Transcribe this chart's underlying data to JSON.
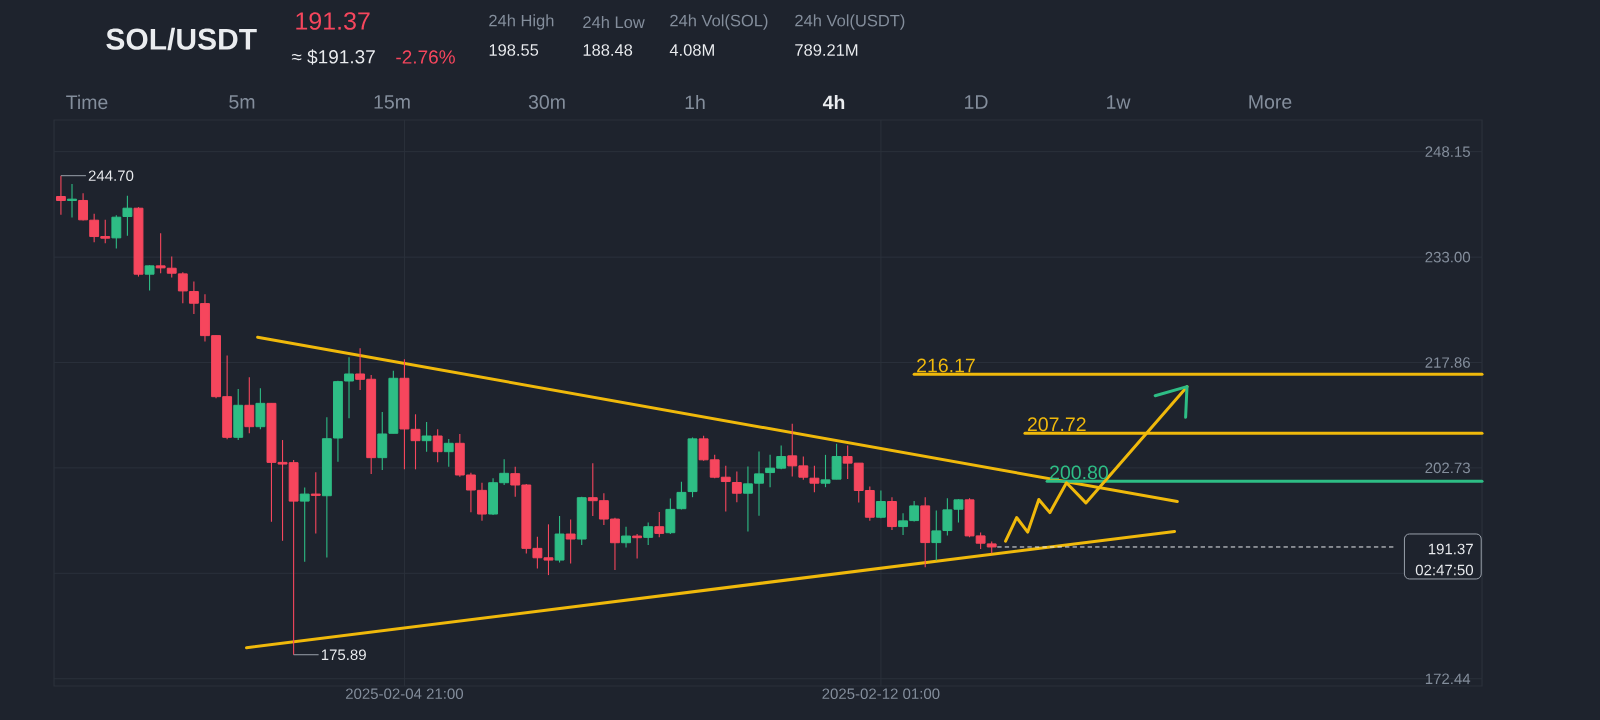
{
  "chart_data": {
    "type": "candlestick",
    "title": "SOL/USDT",
    "annotations": [
      "191.37",
      "≈ $191.37",
      "-2.76%",
      "24h High",
      "198.55",
      "24h Low",
      "188.48",
      "24h Vol(SOL)",
      "4.08M",
      "24h Vol(USDT)",
      "789.21M",
      "Time",
      "5m",
      "15m",
      "30m",
      "1h",
      "4h",
      "1D",
      "1w",
      "More",
      {
        "text": "244.70",
        "x": "2025-01-30T17:00",
        "y": 244.7
      },
      {
        "text": "175.89",
        "x": "2025-02-03T05:00",
        "y": 175.89
      },
      {
        "text": "216.17",
        "x": "2025-02-12T13:00",
        "y": 216.17
      },
      {
        "text": "207.72",
        "x": "2025-02-14T05:00",
        "y": 207.72
      },
      {
        "text": "200.80",
        "x": "2025-02-14T13:00",
        "y": 200.8
      },
      "191.37",
      "02:47:50"
    ],
    "x": [
      "2025-01-30T17:00",
      "2025-01-30T21:00",
      "2025-01-31T01:00",
      "2025-01-31T05:00",
      "2025-01-31T09:00",
      "2025-01-31T13:00",
      "2025-01-31T17:00",
      "2025-01-31T21:00",
      "2025-02-01T01:00",
      "2025-02-01T05:00",
      "2025-02-01T09:00",
      "2025-02-01T13:00",
      "2025-02-01T17:00",
      "2025-02-01T21:00",
      "2025-02-02T01:00",
      "2025-02-02T05:00",
      "2025-02-02T09:00",
      "2025-02-02T13:00",
      "2025-02-02T17:00",
      "2025-02-02T21:00",
      "2025-02-03T01:00",
      "2025-02-03T05:00",
      "2025-02-03T09:00",
      "2025-02-03T13:00",
      "2025-02-03T17:00",
      "2025-02-03T21:00",
      "2025-02-04T01:00",
      "2025-02-04T05:00",
      "2025-02-04T09:00",
      "2025-02-04T13:00",
      "2025-02-04T17:00",
      "2025-02-04T21:00",
      "2025-02-05T01:00",
      "2025-02-05T05:00",
      "2025-02-05T09:00",
      "2025-02-05T13:00",
      "2025-02-05T17:00",
      "2025-02-05T21:00",
      "2025-02-06T01:00",
      "2025-02-06T05:00",
      "2025-02-06T09:00",
      "2025-02-06T13:00",
      "2025-02-06T17:00",
      "2025-02-06T21:00",
      "2025-02-07T01:00",
      "2025-02-07T05:00",
      "2025-02-07T09:00",
      "2025-02-07T13:00",
      "2025-02-07T17:00",
      "2025-02-07T21:00",
      "2025-02-08T01:00",
      "2025-02-08T05:00",
      "2025-02-08T09:00",
      "2025-02-08T13:00",
      "2025-02-08T17:00",
      "2025-02-08T21:00",
      "2025-02-09T01:00",
      "2025-02-09T05:00",
      "2025-02-09T09:00",
      "2025-02-09T13:00",
      "2025-02-09T17:00",
      "2025-02-09T21:00",
      "2025-02-10T01:00",
      "2025-02-10T05:00",
      "2025-02-10T09:00",
      "2025-02-10T13:00",
      "2025-02-10T17:00",
      "2025-02-10T21:00",
      "2025-02-11T01:00",
      "2025-02-11T05:00",
      "2025-02-11T09:00",
      "2025-02-11T13:00",
      "2025-02-11T17:00",
      "2025-02-11T21:00",
      "2025-02-12T01:00",
      "2025-02-12T05:00",
      "2025-02-12T09:00",
      "2025-02-12T13:00",
      "2025-02-12T17:00",
      "2025-02-12T21:00",
      "2025-02-13T01:00",
      "2025-02-13T05:00",
      "2025-02-13T09:00",
      "2025-02-13T13:00",
      "2025-02-13T17:00"
    ],
    "ohlc": [
      [
        241.71,
        244.7,
        239.08,
        241.14
      ],
      [
        241.14,
        243.49,
        238.69,
        241.33
      ],
      [
        241.14,
        242.19,
        238.26,
        238.36
      ],
      [
        238.31,
        239.22,
        235.15,
        235.96
      ],
      [
        235.96,
        238.36,
        235.0,
        235.72
      ],
      [
        235.77,
        239.03,
        234.24,
        238.74
      ],
      [
        238.84,
        241.81,
        236.06,
        240.03
      ],
      [
        240.03,
        240.18,
        230.21,
        230.55
      ],
      [
        230.55,
        231.84,
        228.2,
        231.75
      ],
      [
        231.75,
        236.44,
        230.69,
        231.46
      ],
      [
        231.41,
        233.09,
        230.07,
        230.69
      ],
      [
        230.6,
        230.84,
        226.38,
        228.15
      ],
      [
        228.06,
        229.49,
        224.85,
        226.38
      ],
      [
        226.33,
        227.67,
        220.87,
        221.73
      ],
      [
        221.73,
        221.73,
        212.72,
        212.96
      ],
      [
        212.96,
        218.86,
        206.83,
        207.12
      ],
      [
        207.12,
        214.06,
        206.73,
        211.72
      ],
      [
        211.72,
        215.74,
        207.69,
        208.65
      ],
      [
        208.65,
        214.16,
        208.27,
        212.0
      ],
      [
        212.0,
        212.0,
        194.99,
        203.52
      ],
      [
        203.52,
        206.73,
        192.26,
        203.28
      ],
      [
        203.48,
        203.86,
        175.89,
        197.96
      ],
      [
        197.96,
        199.93,
        189.24,
        198.97
      ],
      [
        198.97,
        202.09,
        193.32,
        198.78
      ],
      [
        198.73,
        209.99,
        189.87,
        206.92
      ],
      [
        207.02,
        215.26,
        203.62,
        215.12
      ],
      [
        215.21,
        218.62,
        209.85,
        216.22
      ],
      [
        216.22,
        219.91,
        213.92,
        215.45
      ],
      [
        215.46,
        216.08,
        201.85,
        204.2
      ],
      [
        204.2,
        210.76,
        202.43,
        207.6
      ],
      [
        207.7,
        216.7,
        207.7,
        215.6
      ],
      [
        215.6,
        218.33,
        202.52,
        208.32
      ],
      [
        208.27,
        210.43,
        202.52,
        206.64
      ],
      [
        206.64,
        209.32,
        205.06,
        207.31
      ],
      [
        207.31,
        208.27,
        203.53,
        205.06
      ],
      [
        205.06,
        206.88,
        202.9,
        206.26
      ],
      [
        206.26,
        207.6,
        201.47,
        201.71
      ],
      [
        201.71,
        202.04,
        196.34,
        199.55
      ],
      [
        199.5,
        200.6,
        195.14,
        196.1
      ],
      [
        196.1,
        201.23,
        195.96,
        200.6
      ],
      [
        200.6,
        203.96,
        200.27,
        201.95
      ],
      [
        201.9,
        202.9,
        198.59,
        200.27
      ],
      [
        200.27,
        200.41,
        190.45,
        191.17
      ],
      [
        191.17,
        192.84,
        188.29,
        189.82
      ],
      [
        189.82,
        194.62,
        187.33,
        189.49
      ],
      [
        189.49,
        195.81,
        189.15,
        193.23
      ],
      [
        193.23,
        195.33,
        189.01,
        192.51
      ],
      [
        192.51,
        198.59,
        191.64,
        198.45
      ],
      [
        198.45,
        203.38,
        195.81,
        198.02
      ],
      [
        198.02,
        199.07,
        194.52,
        195.38
      ],
      [
        195.38,
        195.57,
        188.05,
        191.98
      ],
      [
        191.98,
        194.28,
        191.31,
        192.94
      ],
      [
        192.94,
        193.23,
        189.73,
        192.7
      ],
      [
        192.75,
        194.9,
        191.64,
        194.28
      ],
      [
        194.28,
        196.39,
        192.75,
        193.32
      ],
      [
        193.42,
        198.35,
        193.23,
        196.77
      ],
      [
        196.87,
        200.75,
        196.77,
        199.21
      ],
      [
        199.33,
        207.1,
        198.52,
        206.9
      ],
      [
        206.9,
        207.34,
        203.74,
        203.89
      ],
      [
        203.89,
        204.6,
        201.25,
        201.39
      ],
      [
        201.39,
        203.02,
        196.46,
        200.77
      ],
      [
        200.63,
        202.21,
        197.8,
        199.09
      ],
      [
        199.09,
        202.93,
        193.58,
        200.44
      ],
      [
        200.53,
        205.08,
        195.84,
        201.87
      ],
      [
        202.06,
        204.6,
        199.96,
        202.69
      ],
      [
        202.69,
        205.95,
        202.54,
        204.36
      ],
      [
        204.46,
        209.06,
        201.49,
        203.02
      ],
      [
        203.02,
        204.36,
        201.01,
        201.39
      ],
      [
        201.25,
        203.02,
        199.24,
        200.53
      ],
      [
        200.53,
        204.6,
        199.96,
        201.01
      ],
      [
        201.11,
        206.19,
        201.11,
        204.36
      ],
      [
        204.36,
        205.95,
        201.15,
        203.41
      ],
      [
        203.41,
        203.41,
        197.75,
        199.48
      ],
      [
        199.48,
        200.05,
        195.12,
        195.64
      ],
      [
        195.64,
        199.48,
        195.5,
        197.9
      ],
      [
        197.9,
        198.52,
        193.82,
        194.3
      ],
      [
        194.3,
        196.22,
        193.1,
        195.12
      ],
      [
        195.16,
        197.99,
        195.02,
        197.27
      ],
      [
        197.27,
        198.52,
        188.46,
        192.0
      ],
      [
        192.0,
        196.6,
        189.41,
        193.68
      ],
      [
        193.73,
        198.37,
        193.01,
        196.7
      ],
      [
        196.79,
        198.23,
        194.88,
        198.14
      ],
      [
        198.14,
        198.37,
        192.77,
        192.96
      ],
      [
        192.96,
        193.44,
        191.09,
        191.91
      ],
      [
        191.81,
        192.15,
        190.47,
        191.37
      ]
    ],
    "colors": [
      "#f6465d",
      "#2ebd85",
      "#f6465d",
      "#f6465d",
      "#f6465d",
      "#2ebd85",
      "#2ebd85",
      "#f6465d",
      "#2ebd85",
      "#f6465d",
      "#f6465d",
      "#f6465d",
      "#f6465d",
      "#f6465d",
      "#f6465d",
      "#f6465d",
      "#2ebd85",
      "#f6465d",
      "#2ebd85",
      "#f6465d",
      "#f6465d",
      "#f6465d",
      "#2ebd85",
      "#f6465d",
      "#2ebd85",
      "#2ebd85",
      "#2ebd85",
      "#f6465d",
      "#f6465d",
      "#2ebd85",
      "#2ebd85",
      "#f6465d",
      "#f6465d",
      "#2ebd85",
      "#f6465d",
      "#2ebd85",
      "#f6465d",
      "#f6465d",
      "#f6465d",
      "#2ebd85",
      "#2ebd85",
      "#f6465d",
      "#f6465d",
      "#f6465d",
      "#f6465d",
      "#2ebd85",
      "#f6465d",
      "#2ebd85",
      "#f6465d",
      "#f6465d",
      "#f6465d",
      "#2ebd85",
      "#f6465d",
      "#2ebd85",
      "#f6465d",
      "#2ebd85",
      "#2ebd85",
      "#2ebd85",
      "#f6465d",
      "#f6465d",
      "#f6465d",
      "#f6465d",
      "#2ebd85",
      "#2ebd85",
      "#2ebd85",
      "#2ebd85",
      "#f6465d",
      "#f6465d",
      "#f6465d",
      "#2ebd85",
      "#2ebd85",
      "#f6465d",
      "#f6465d",
      "#f6465d",
      "#2ebd85",
      "#f6465d",
      "#2ebd85",
      "#2ebd85",
      "#f6465d",
      "#2ebd85",
      "#2ebd85",
      "#2ebd85",
      "#f6465d",
      "#f6465d",
      "#f6465d"
    ],
    "series": [
      {
        "type": "line",
        "x": [
          "2025-02-02T16:00",
          "2025-02-16T12:00"
        ],
        "values": [
          221.5,
          197.9
        ],
        "color": "#f0b90b"
      },
      {
        "type": "line",
        "x": [
          "2025-02-02T12:00",
          "2025-02-16T11:00"
        ],
        "values": [
          176.9,
          193.6
        ],
        "color": "#f0b90b"
      },
      {
        "type": "line",
        "x": [
          "2025-02-12T13:00",
          "2025-02-21T02:00"
        ],
        "values": [
          216.17,
          216.17
        ],
        "color": "#f0b90b"
      },
      {
        "type": "line",
        "x": [
          "2025-02-14T05:00",
          "2025-02-21T02:00"
        ],
        "values": [
          207.72,
          207.72
        ],
        "color": "#f0b90b"
      },
      {
        "type": "line",
        "x": [
          "2025-02-14T13:00",
          "2025-02-21T02:00"
        ],
        "values": [
          200.8,
          200.8
        ],
        "color": "#2ebd85"
      },
      {
        "type": "line",
        "x": [
          "2025-02-13T19:00",
          "2025-02-19T18:00"
        ],
        "values": [
          191.37,
          191.37
        ],
        "color": "#eaecef",
        "line_style": "dashed"
      },
      {
        "type": "line",
        "x": [
          "2025-02-13T22:00",
          "2025-02-14T02:00",
          "2025-02-14T06:00",
          "2025-02-14T10:00",
          "2025-02-14T14:00",
          "2025-02-14T20:00",
          "2025-02-15T03:00",
          "2025-02-16T15:30"
        ],
        "values": [
          192.2,
          195.6,
          193.5,
          198.2,
          196.3,
          200.6,
          197.7,
          214.4
        ],
        "color": "#f0b90b"
      },
      {
        "type": "line",
        "x": [
          "2025-02-16T04:00",
          "2025-02-16T15:30",
          "2025-02-16T15:00"
        ],
        "values": [
          213.1,
          214.4,
          210.0
        ],
        "color": "#2ebd85"
      }
    ],
    "xlim": [
      "2025-01-30T14:30",
      "2025-02-21T02:00"
    ],
    "xticks": [
      {
        "value": "2025-02-04T21:00",
        "label": "2025-02-04 21:00"
      },
      {
        "value": "2025-02-12T01:00",
        "label": "2025-02-12 01:00"
      }
    ],
    "ylim": [
      171.4,
      252.7
    ],
    "yticks": [
      248.15,
      {
        "value": 233,
        "label": "233.00"
      },
      217.86,
      202.73,
      {
        "value": 187.59,
        "label": null
      },
      172.44
    ],
    "grid": true
  }
}
